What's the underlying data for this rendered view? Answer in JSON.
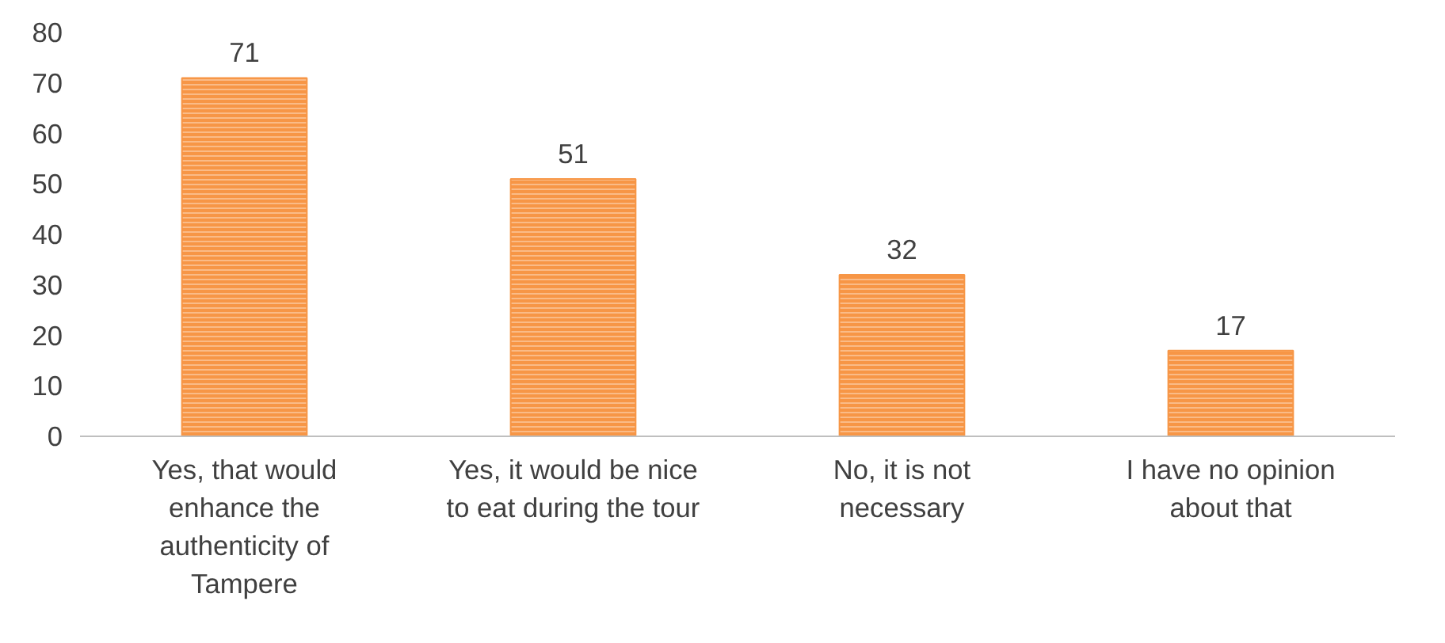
{
  "chart_data": {
    "type": "bar",
    "categories": [
      "Yes, that would enhance the authenticity of Tampere",
      "Yes, it would be nice to eat during the tour",
      "No, it is not necessary",
      "I have no opinion about that"
    ],
    "values": [
      71,
      51,
      32,
      17
    ],
    "color": "#f79646",
    "ylim": [
      0,
      80
    ],
    "yticks": [
      0,
      10,
      20,
      30,
      40,
      50,
      60,
      70,
      80
    ],
    "grid": false,
    "data_labels": true
  }
}
